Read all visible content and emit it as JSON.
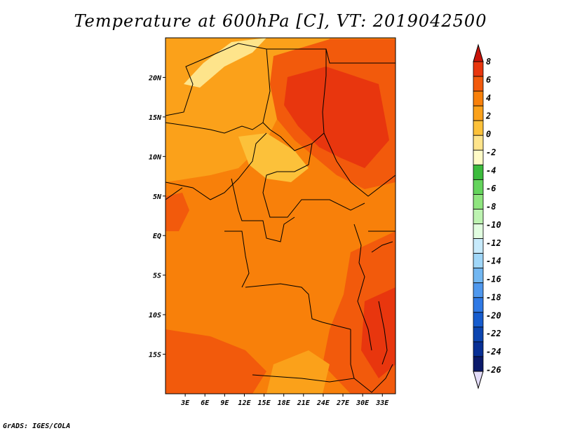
{
  "title": "Temperature at 600hPa [C], VT: 2019042500",
  "credit": "GrADS: IGES/COLA",
  "map": {
    "lat_ticks": [
      {
        "label": "20N",
        "value": 20
      },
      {
        "label": "15N",
        "value": 15
      },
      {
        "label": "10N",
        "value": 10
      },
      {
        "label": "5N",
        "value": 5
      },
      {
        "label": "EQ",
        "value": 0
      },
      {
        "label": "5S",
        "value": -5
      },
      {
        "label": "10S",
        "value": -10
      },
      {
        "label": "15S",
        "value": -15
      }
    ],
    "lon_ticks": [
      {
        "label": "3E",
        "value": 3
      },
      {
        "label": "6E",
        "value": 6
      },
      {
        "label": "9E",
        "value": 9
      },
      {
        "label": "12E",
        "value": 12
      },
      {
        "label": "15E",
        "value": 15
      },
      {
        "label": "18E",
        "value": 18
      },
      {
        "label": "21E",
        "value": 21
      },
      {
        "label": "24E",
        "value": 24
      },
      {
        "label": "27E",
        "value": 27
      },
      {
        "label": "30E",
        "value": 30
      },
      {
        "label": "33E",
        "value": 33
      }
    ],
    "lat_range": [
      -20,
      25
    ],
    "lon_range": [
      0,
      35
    ]
  },
  "colorbar": {
    "labels": [
      "8",
      "6",
      "4",
      "2",
      "0",
      "-2",
      "-4",
      "-6",
      "-8",
      "-10",
      "-12",
      "-14",
      "-16",
      "-18",
      "-20",
      "-22",
      "-24",
      "-26"
    ],
    "colors": [
      "#e8360e",
      "#f25a0c",
      "#f8800a",
      "#fba11a",
      "#fcc13a",
      "#fee48b",
      "#fffbc7",
      "#3cbc3d",
      "#64d45c",
      "#8fe57f",
      "#bdf3b1",
      "#e1fde0",
      "#c7eafb",
      "#a0d7f9",
      "#72b7f2",
      "#4f98ee",
      "#2f79e5",
      "#165cce",
      "#0c45b0",
      "#082f95",
      "#0b1a6b"
    ],
    "top_arrow_color": "#c8140a",
    "bottom_arrow_color": "#e3dcf8"
  },
  "field_colors": {
    "warm": "#f8800a",
    "warmer": "#f25a0c",
    "hot": "#e8360e",
    "mild": "#fba11a",
    "cool": "#fcc13a",
    "coolest": "#fee48b"
  }
}
